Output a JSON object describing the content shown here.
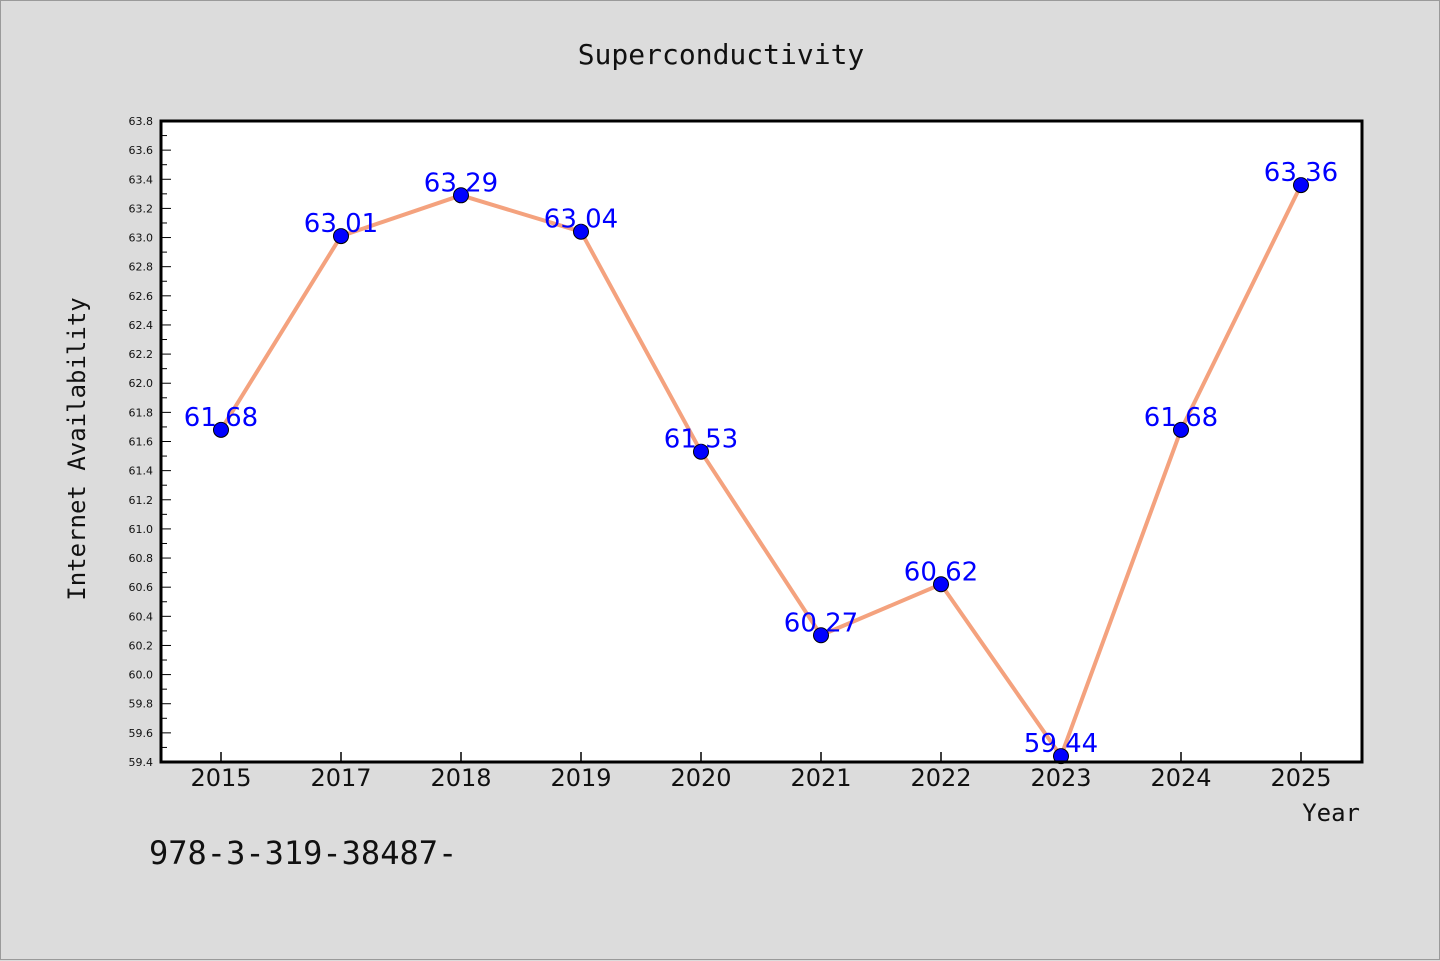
{
  "chart_data": {
    "type": "line",
    "title": "Superconductivity",
    "xlabel": "Year",
    "ylabel": "Internet Availability",
    "categories": [
      "2015",
      "2017",
      "2018",
      "2019",
      "2020",
      "2021",
      "2022",
      "2023",
      "2024",
      "2025"
    ],
    "series": [
      {
        "values": [
          61.68,
          63.01,
          63.29,
          63.04,
          61.53,
          60.27,
          60.62,
          59.44,
          61.68,
          63.36
        ]
      }
    ],
    "data_labels": [
      "61.68",
      "63.01",
      "63.29",
      "63.04",
      "61.53",
      "60.27",
      "60.62",
      "59.44",
      "61.68",
      "63.36"
    ],
    "ylim": [
      59.4,
      63.8
    ],
    "yticks": [
      "59.4",
      "59.6",
      "59.8",
      "60.0",
      "60.2",
      "60.4",
      "60.6",
      "60.8",
      "61.0",
      "61.2",
      "61.4",
      "61.6",
      "61.8",
      "62.0",
      "62.2",
      "62.4",
      "62.6",
      "62.8",
      "63.0",
      "63.2",
      "63.4",
      "63.6",
      "63.8"
    ],
    "grid": false,
    "legend": "none",
    "line_color": "#f4a27e",
    "marker_color": "#0000ff",
    "label_color": "#0000ff"
  },
  "footnote": "978-3-319-38487-"
}
